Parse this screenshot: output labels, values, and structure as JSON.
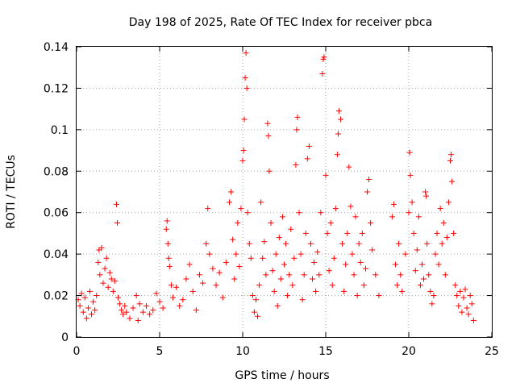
{
  "chart_data": {
    "type": "scatter",
    "title": "Day 198 of 2025, Rate Of TEC Index for receiver pbca",
    "xlabel": "GPS time / hours",
    "ylabel": "ROTI / TECUs",
    "xlim": [
      0,
      25
    ],
    "ylim": [
      0,
      0.14
    ],
    "x_ticks": [
      "0",
      "5",
      "10",
      "15",
      "20",
      "25"
    ],
    "y_ticks": [
      "0",
      "0.02",
      "0.04",
      "0.06",
      "0.08",
      "0.1",
      "0.12",
      "0.14"
    ],
    "grid": true,
    "marker": "plus",
    "color": "#ff0000",
    "series": [
      {
        "points": [
          [
            0.1,
            0.018
          ],
          [
            0.2,
            0.015
          ],
          [
            0.3,
            0.021
          ],
          [
            0.4,
            0.012
          ],
          [
            0.5,
            0.019
          ],
          [
            0.6,
            0.009
          ],
          [
            0.7,
            0.014
          ],
          [
            0.8,
            0.022
          ],
          [
            0.9,
            0.011
          ],
          [
            1.0,
            0.017
          ],
          [
            1.1,
            0.013
          ],
          [
            1.2,
            0.02
          ],
          [
            1.3,
            0.036
          ],
          [
            1.35,
            0.042
          ],
          [
            1.4,
            0.03
          ],
          [
            1.5,
            0.043
          ],
          [
            1.6,
            0.026
          ],
          [
            1.7,
            0.033
          ],
          [
            1.8,
            0.038
          ],
          [
            1.9,
            0.024
          ],
          [
            2.0,
            0.031
          ],
          [
            2.1,
            0.028
          ],
          [
            2.2,
            0.022
          ],
          [
            2.3,
            0.027
          ],
          [
            2.4,
            0.064
          ],
          [
            2.45,
            0.055
          ],
          [
            2.5,
            0.019
          ],
          [
            2.6,
            0.016
          ],
          [
            2.7,
            0.013
          ],
          [
            2.8,
            0.011
          ],
          [
            2.9,
            0.015
          ],
          [
            3.0,
            0.012
          ],
          [
            3.2,
            0.009
          ],
          [
            3.4,
            0.014
          ],
          [
            3.6,
            0.02
          ],
          [
            3.7,
            0.008
          ],
          [
            3.8,
            0.016
          ],
          [
            4.0,
            0.012
          ],
          [
            4.2,
            0.015
          ],
          [
            4.4,
            0.011
          ],
          [
            4.6,
            0.013
          ],
          [
            4.8,
            0.021
          ],
          [
            5.0,
            0.017
          ],
          [
            5.2,
            0.014
          ],
          [
            5.4,
            0.052
          ],
          [
            5.45,
            0.056
          ],
          [
            5.5,
            0.045
          ],
          [
            5.55,
            0.038
          ],
          [
            5.6,
            0.034
          ],
          [
            5.7,
            0.025
          ],
          [
            5.8,
            0.019
          ],
          [
            6.0,
            0.024
          ],
          [
            6.2,
            0.015
          ],
          [
            6.4,
            0.018
          ],
          [
            6.6,
            0.028
          ],
          [
            6.8,
            0.035
          ],
          [
            7.0,
            0.022
          ],
          [
            7.2,
            0.013
          ],
          [
            7.4,
            0.03
          ],
          [
            7.6,
            0.026
          ],
          [
            7.8,
            0.045
          ],
          [
            7.9,
            0.062
          ],
          [
            8.0,
            0.04
          ],
          [
            8.2,
            0.033
          ],
          [
            8.4,
            0.025
          ],
          [
            8.6,
            0.031
          ],
          [
            8.8,
            0.019
          ],
          [
            9.0,
            0.036
          ],
          [
            9.2,
            0.065
          ],
          [
            9.3,
            0.07
          ],
          [
            9.4,
            0.047
          ],
          [
            9.5,
            0.028
          ],
          [
            9.6,
            0.04
          ],
          [
            9.7,
            0.055
          ],
          [
            9.8,
            0.034
          ],
          [
            9.9,
            0.062
          ],
          [
            10.0,
            0.085
          ],
          [
            10.05,
            0.09
          ],
          [
            10.1,
            0.105
          ],
          [
            10.15,
            0.125
          ],
          [
            10.2,
            0.137
          ],
          [
            10.25,
            0.12
          ],
          [
            10.3,
            0.06
          ],
          [
            10.4,
            0.045
          ],
          [
            10.5,
            0.038
          ],
          [
            10.6,
            0.02
          ],
          [
            10.7,
            0.012
          ],
          [
            10.8,
            0.018
          ],
          [
            10.9,
            0.01
          ],
          [
            11.0,
            0.025
          ],
          [
            11.1,
            0.065
          ],
          [
            11.2,
            0.038
          ],
          [
            11.3,
            0.046
          ],
          [
            11.4,
            0.03
          ],
          [
            11.5,
            0.103
          ],
          [
            11.55,
            0.097
          ],
          [
            11.6,
            0.08
          ],
          [
            11.7,
            0.055
          ],
          [
            11.8,
            0.032
          ],
          [
            11.9,
            0.022
          ],
          [
            12.0,
            0.04
          ],
          [
            12.1,
            0.015
          ],
          [
            12.2,
            0.048
          ],
          [
            12.3,
            0.028
          ],
          [
            12.4,
            0.058
          ],
          [
            12.5,
            0.035
          ],
          [
            12.6,
            0.045
          ],
          [
            12.7,
            0.02
          ],
          [
            12.8,
            0.03
          ],
          [
            12.9,
            0.052
          ],
          [
            13.0,
            0.025
          ],
          [
            13.1,
            0.038
          ],
          [
            13.2,
            0.083
          ],
          [
            13.25,
            0.1
          ],
          [
            13.3,
            0.106
          ],
          [
            13.4,
            0.06
          ],
          [
            13.5,
            0.04
          ],
          [
            13.6,
            0.018
          ],
          [
            13.7,
            0.03
          ],
          [
            13.8,
            0.05
          ],
          [
            13.9,
            0.086
          ],
          [
            14.0,
            0.092
          ],
          [
            14.1,
            0.045
          ],
          [
            14.2,
            0.028
          ],
          [
            14.3,
            0.036
          ],
          [
            14.4,
            0.022
          ],
          [
            14.5,
            0.041
          ],
          [
            14.6,
            0.03
          ],
          [
            14.7,
            0.06
          ],
          [
            14.8,
            0.127
          ],
          [
            14.85,
            0.134
          ],
          [
            14.9,
            0.135
          ],
          [
            15.0,
            0.078
          ],
          [
            15.1,
            0.05
          ],
          [
            15.2,
            0.032
          ],
          [
            15.3,
            0.055
          ],
          [
            15.4,
            0.025
          ],
          [
            15.5,
            0.038
          ],
          [
            15.6,
            0.062
          ],
          [
            15.7,
            0.088
          ],
          [
            15.75,
            0.098
          ],
          [
            15.8,
            0.109
          ],
          [
            15.9,
            0.105
          ],
          [
            16.0,
            0.045
          ],
          [
            16.1,
            0.022
          ],
          [
            16.2,
            0.035
          ],
          [
            16.3,
            0.05
          ],
          [
            16.4,
            0.082
          ],
          [
            16.5,
            0.063
          ],
          [
            16.6,
            0.04
          ],
          [
            16.7,
            0.03
          ],
          [
            16.8,
            0.058
          ],
          [
            16.9,
            0.02
          ],
          [
            17.0,
            0.045
          ],
          [
            17.1,
            0.036
          ],
          [
            17.2,
            0.05
          ],
          [
            17.3,
            0.025
          ],
          [
            17.4,
            0.033
          ],
          [
            17.5,
            0.07
          ],
          [
            17.6,
            0.076
          ],
          [
            17.7,
            0.055
          ],
          [
            17.8,
            0.042
          ],
          [
            18.0,
            0.03
          ],
          [
            18.2,
            0.02
          ],
          [
            19.0,
            0.058
          ],
          [
            19.1,
            0.064
          ],
          [
            19.2,
            0.035
          ],
          [
            19.3,
            0.025
          ],
          [
            19.4,
            0.045
          ],
          [
            19.5,
            0.03
          ],
          [
            19.6,
            0.022
          ],
          [
            19.8,
            0.04
          ],
          [
            20.0,
            0.06
          ],
          [
            20.05,
            0.089
          ],
          [
            20.1,
            0.078
          ],
          [
            20.2,
            0.065
          ],
          [
            20.3,
            0.05
          ],
          [
            20.4,
            0.032
          ],
          [
            20.5,
            0.042
          ],
          [
            20.6,
            0.058
          ],
          [
            20.7,
            0.025
          ],
          [
            20.8,
            0.035
          ],
          [
            20.9,
            0.028
          ],
          [
            21.0,
            0.07
          ],
          [
            21.05,
            0.068
          ],
          [
            21.1,
            0.045
          ],
          [
            21.2,
            0.03
          ],
          [
            21.3,
            0.022
          ],
          [
            21.4,
            0.016
          ],
          [
            21.5,
            0.02
          ],
          [
            21.6,
            0.04
          ],
          [
            21.7,
            0.05
          ],
          [
            21.8,
            0.035
          ],
          [
            21.9,
            0.062
          ],
          [
            22.0,
            0.045
          ],
          [
            22.1,
            0.055
          ],
          [
            22.2,
            0.03
          ],
          [
            22.3,
            0.048
          ],
          [
            22.4,
            0.065
          ],
          [
            22.5,
            0.085
          ],
          [
            22.55,
            0.088
          ],
          [
            22.6,
            0.075
          ],
          [
            22.7,
            0.05
          ],
          [
            22.8,
            0.025
          ],
          [
            22.9,
            0.02
          ],
          [
            23.0,
            0.015
          ],
          [
            23.1,
            0.022
          ],
          [
            23.2,
            0.012
          ],
          [
            23.3,
            0.019
          ],
          [
            23.4,
            0.023
          ],
          [
            23.5,
            0.014
          ],
          [
            23.6,
            0.011
          ],
          [
            23.7,
            0.02
          ],
          [
            23.8,
            0.016
          ],
          [
            23.9,
            0.008
          ]
        ]
      }
    ]
  }
}
